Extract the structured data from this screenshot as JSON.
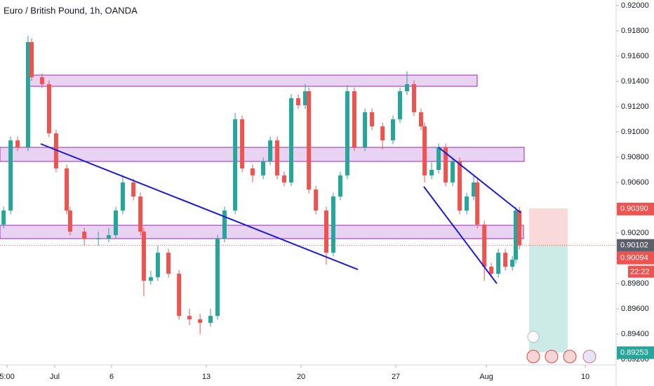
{
  "chart_data": {
    "type": "candlestick",
    "title": "Euro / British Pound, 1h, OANDA",
    "x": [
      -2.7,
      -2.33,
      -1.96,
      -1.41,
      -1.22,
      -0.67,
      -0.3,
      0.07,
      0.63,
      0.81,
      1.56,
      2.3,
      2.85,
      3.22,
      3.59,
      4.15,
      4.52,
      4.7,
      5.07,
      5.44,
      6.0,
      6.56,
      7.11,
      7.67,
      8.22,
      8.59,
      8.96,
      9.52,
      9.89,
      10.44,
      11.0,
      11.37,
      11.74,
      12.11,
      12.48,
      12.85,
      13.22,
      13.41,
      13.78,
      14.33,
      14.7,
      15.07,
      15.44,
      15.81,
      16.37,
      16.74,
      17.3,
      17.85,
      18.22,
      18.59,
      18.96,
      19.33,
      19.52,
      19.89,
      20.26,
      20.63,
      21.0,
      21.37,
      21.74,
      22.11,
      22.3,
      22.67,
      23.04,
      23.41,
      23.78,
      24.15,
      24.33,
      24.52
    ],
    "open": [
      0.90267,
      0.90378,
      0.90933,
      0.90878,
      0.91711,
      0.91433,
      0.91378,
      0.90989,
      0.90711,
      0.90378,
      0.90211,
      0.90156,
      0.90156,
      0.90183,
      0.90378,
      0.906,
      0.90489,
      0.90211,
      0.89822,
      0.8985,
      0.90044,
      0.89878,
      0.89544,
      0.89517,
      0.89489,
      0.89544,
      0.90156,
      0.90378,
      0.911,
      0.90711,
      0.90656,
      0.90767,
      0.90933,
      0.90656,
      0.906,
      0.91267,
      0.91211,
      0.91322,
      0.90544,
      0.90378,
      0.90044,
      0.90489,
      0.90656,
      0.91322,
      0.90878,
      0.91156,
      0.91044,
      0.90933,
      0.911,
      0.91322,
      0.91378,
      0.91156,
      0.91044,
      0.90656,
      0.907,
      0.90878,
      0.906,
      0.90767,
      0.90378,
      0.90489,
      0.906,
      0.90267,
      0.89933,
      0.89878,
      0.90044,
      0.89933,
      0.89989,
      0.90378
    ],
    "high": [
      0.90408,
      0.90963,
      0.90963,
      0.9176,
      0.91741,
      0.91463,
      0.91408,
      0.91019,
      0.90741,
      0.90408,
      0.90241,
      0.90211,
      0.90241,
      0.90408,
      0.9066,
      0.9063,
      0.90519,
      0.90241,
      0.899,
      0.901,
      0.90074,
      0.89908,
      0.896,
      0.8956,
      0.896,
      0.90186,
      0.90408,
      0.9115,
      0.9113,
      0.90741,
      0.90797,
      0.90963,
      0.90963,
      0.90686,
      0.913,
      0.91297,
      0.9138,
      0.91352,
      0.90574,
      0.90408,
      0.90519,
      0.90686,
      0.9137,
      0.91352,
      0.91186,
      0.91186,
      0.91074,
      0.9113,
      0.91352,
      0.9148,
      0.91408,
      0.91186,
      0.91074,
      0.9076,
      0.90908,
      0.90908,
      0.90797,
      0.90797,
      0.90519,
      0.9065,
      0.9063,
      0.90297,
      0.89963,
      0.90074,
      0.90074,
      0.90019,
      0.90408,
      0.90408
    ],
    "low": [
      0.90237,
      0.90348,
      0.90848,
      0.90848,
      0.91403,
      0.91348,
      0.90959,
      0.90681,
      0.90348,
      0.90181,
      0.901,
      0.901,
      0.90126,
      0.90153,
      0.90348,
      0.90459,
      0.90181,
      0.897,
      0.89792,
      0.8982,
      0.89848,
      0.89514,
      0.8947,
      0.894,
      0.89459,
      0.89514,
      0.90126,
      0.90348,
      0.90681,
      0.906,
      0.90626,
      0.90737,
      0.90626,
      0.9057,
      0.9057,
      0.91181,
      0.91181,
      0.90514,
      0.90348,
      0.8995,
      0.90014,
      0.90459,
      0.90626,
      0.90848,
      0.90848,
      0.91014,
      0.9086,
      0.90903,
      0.9107,
      0.91292,
      0.91126,
      0.91014,
      0.906,
      0.90626,
      0.9067,
      0.9057,
      0.9057,
      0.90348,
      0.90348,
      0.90459,
      0.90237,
      0.8982,
      0.89848,
      0.89848,
      0.89903,
      0.89903,
      0.89959,
      0.90072
    ],
    "close": [
      0.90378,
      0.90933,
      0.90878,
      0.91711,
      0.91433,
      0.91378,
      0.90989,
      0.90711,
      0.90378,
      0.90211,
      0.90156,
      0.90156,
      0.90183,
      0.90378,
      0.906,
      0.90489,
      0.90211,
      0.89822,
      0.8985,
      0.90044,
      0.89878,
      0.89544,
      0.89517,
      0.89489,
      0.89544,
      0.90156,
      0.90378,
      0.911,
      0.90711,
      0.90656,
      0.90767,
      0.90933,
      0.90656,
      0.906,
      0.91267,
      0.91211,
      0.91322,
      0.90544,
      0.90378,
      0.90044,
      0.90489,
      0.90656,
      0.91322,
      0.90878,
      0.91156,
      0.91044,
      0.90933,
      0.911,
      0.91322,
      0.91378,
      0.91156,
      0.91044,
      0.90656,
      0.907,
      0.90878,
      0.906,
      0.90767,
      0.90378,
      0.90489,
      0.906,
      0.90267,
      0.89933,
      0.89878,
      0.90044,
      0.89933,
      0.89989,
      0.90378,
      0.90102
    ],
    "up_color": "#26a69a",
    "down_color": "#ef5350",
    "xlim": [
      -2.89,
      29.7
    ],
    "xticks": [
      {
        "value": -2.52,
        "label": "5:00"
      },
      {
        "value": 0,
        "label": "Jul"
      },
      {
        "value": 3,
        "label": "6"
      },
      {
        "value": 8,
        "label": "13"
      },
      {
        "value": 13,
        "label": "20"
      },
      {
        "value": 18,
        "label": "27"
      },
      {
        "value": 22.78,
        "label": "Aug"
      },
      {
        "value": 28,
        "label": "10"
      }
    ],
    "ylim": [
      0.89156,
      0.92044
    ],
    "yticks": [
      {
        "value": 0.892,
        "label": "0.89200"
      },
      {
        "value": 0.894,
        "label": "0.89400"
      },
      {
        "value": 0.896,
        "label": "0.89600"
      },
      {
        "value": 0.898,
        "label": "0.89800"
      },
      {
        "value": 0.9,
        "label": "0.90000"
      },
      {
        "value": 0.902,
        "label": "0.90200"
      },
      {
        "value": 0.904,
        "label": "0.90400"
      },
      {
        "value": 0.906,
        "label": "0.90600"
      },
      {
        "value": 0.908,
        "label": "0.90800"
      },
      {
        "value": 0.91,
        "label": "0.91000"
      },
      {
        "value": 0.912,
        "label": "0.91200"
      },
      {
        "value": 0.914,
        "label": "0.91400"
      },
      {
        "value": 0.916,
        "label": "0.91600"
      },
      {
        "value": 0.918,
        "label": "0.91800"
      },
      {
        "value": 0.92,
        "label": "0.92000"
      }
    ],
    "markers": [
      {
        "value": 0.9039,
        "label": "0.90390",
        "color": "#ef5350"
      },
      {
        "value": 0.90102,
        "label": "0.90102",
        "color": "#5d606b"
      },
      {
        "value": 0.90094,
        "label": "0.90094",
        "color": "#ef5350"
      },
      {
        "value": 0.89253,
        "label": "0.89253",
        "color": "#26a69a"
      }
    ],
    "countdown": "22:22"
  }
}
